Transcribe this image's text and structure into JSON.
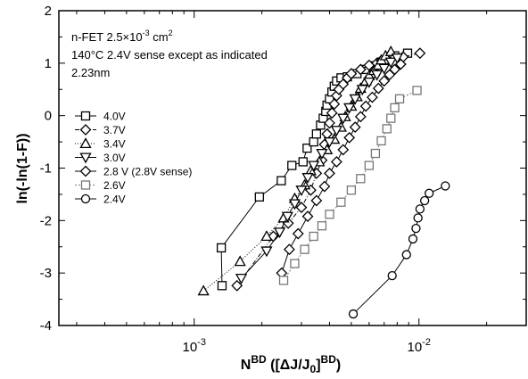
{
  "chart_data": {
    "type": "scatter",
    "title": "",
    "xlabel": {
      "main": "N",
      "sup1": "BD",
      "mid": " ([ΔJ/J",
      "sub": "0",
      "end": "]",
      "sup2": "BD",
      "close": ")"
    },
    "ylabel": "ln(-ln(1-F))",
    "xscale": "log",
    "xlim": [
      0.00025,
      0.03
    ],
    "ylim": [
      -4,
      2
    ],
    "x_major_ticks": [
      {
        "value": 0.001,
        "base": "10",
        "exp": "-3"
      },
      {
        "value": 0.01,
        "base": "10",
        "exp": "-2"
      }
    ],
    "y_ticks": [
      "-4",
      "-3",
      "-2",
      "-1",
      "0",
      "1",
      "2"
    ],
    "annotations": {
      "line1": {
        "pre": "n-FET 2.5×10",
        "sup": "-3",
        "post": " cm",
        "sup2": "2"
      },
      "line2": "140°C  2.4V sense except as indicated",
      "line3": "2.23nm"
    },
    "legend_position": "left",
    "series": [
      {
        "name": "4.0V",
        "marker": "square",
        "dash": "",
        "points": [
          [
            0.00133,
            -3.24
          ],
          [
            0.00132,
            -2.52
          ],
          [
            0.00195,
            -1.55
          ],
          [
            0.00244,
            -1.24
          ],
          [
            0.00272,
            -0.95
          ],
          [
            0.00305,
            -0.88
          ],
          [
            0.00318,
            -0.62
          ],
          [
            0.0034,
            -0.5
          ],
          [
            0.0035,
            -0.35
          ],
          [
            0.00365,
            -0.18
          ],
          [
            0.00375,
            -0.05
          ],
          [
            0.00385,
            0.08
          ],
          [
            0.0039,
            0.2
          ],
          [
            0.004,
            0.32
          ],
          [
            0.0041,
            0.45
          ],
          [
            0.0042,
            0.56
          ],
          [
            0.0043,
            0.66
          ],
          [
            0.0045,
            0.72
          ],
          [
            0.0048,
            0.74
          ],
          [
            0.0053,
            0.8
          ],
          [
            0.0058,
            0.88
          ],
          [
            0.0063,
            0.95
          ],
          [
            0.0068,
            1.02
          ],
          [
            0.0073,
            1.08
          ],
          [
            0.0078,
            1.14
          ],
          [
            0.0089,
            1.19
          ]
        ]
      },
      {
        "name": "3.7V",
        "marker": "diamond",
        "dash": "5,2,1,2",
        "points": [
          [
            0.00155,
            -3.24
          ],
          [
            0.00225,
            -2.3
          ],
          [
            0.00262,
            -2.05
          ],
          [
            0.003,
            -1.75
          ],
          [
            0.0033,
            -1.42
          ],
          [
            0.0035,
            -1.1
          ],
          [
            0.0037,
            -0.85
          ],
          [
            0.0038,
            -0.55
          ],
          [
            0.0039,
            -0.35
          ],
          [
            0.004,
            -0.14
          ],
          [
            0.0041,
            0.05
          ],
          [
            0.0042,
            0.22
          ],
          [
            0.0043,
            0.38
          ],
          [
            0.0044,
            0.5
          ],
          [
            0.0046,
            0.6
          ],
          [
            0.0048,
            0.72
          ],
          [
            0.005,
            0.8
          ],
          [
            0.0055,
            0.88
          ],
          [
            0.006,
            0.96
          ],
          [
            0.0065,
            1.0
          ],
          [
            0.0068,
            1.05
          ],
          [
            0.0072,
            1.07
          ],
          [
            0.0085,
            1.12
          ],
          [
            0.0101,
            1.19
          ]
        ]
      },
      {
        "name": "3.4V",
        "marker": "triangle-up",
        "dash": "1,2",
        "points": [
          [
            0.0011,
            -3.34
          ],
          [
            0.0016,
            -2.78
          ],
          [
            0.0021,
            -2.3
          ],
          [
            0.0025,
            -1.95
          ],
          [
            0.0028,
            -1.58
          ],
          [
            0.0031,
            -1.32
          ],
          [
            0.0033,
            -1.05
          ],
          [
            0.0036,
            -0.88
          ],
          [
            0.0039,
            -0.65
          ],
          [
            0.0042,
            -0.45
          ],
          [
            0.0045,
            -0.22
          ],
          [
            0.0047,
            -0.02
          ],
          [
            0.005,
            0.18
          ],
          [
            0.0053,
            0.36
          ],
          [
            0.0055,
            0.52
          ],
          [
            0.0058,
            0.66
          ],
          [
            0.006,
            0.76
          ],
          [
            0.0063,
            0.86
          ],
          [
            0.0066,
            0.96
          ],
          [
            0.0068,
            1.06
          ],
          [
            0.0071,
            1.14
          ],
          [
            0.0075,
            1.22
          ]
        ]
      },
      {
        "name": "3.0V",
        "marker": "triangle-down",
        "dash": "",
        "points": [
          [
            0.00162,
            -3.1
          ],
          [
            0.0021,
            -2.58
          ],
          [
            0.0024,
            -2.22
          ],
          [
            0.0026,
            -1.92
          ],
          [
            0.0028,
            -1.68
          ],
          [
            0.003,
            -1.42
          ],
          [
            0.0032,
            -1.18
          ],
          [
            0.0034,
            -0.95
          ],
          [
            0.0037,
            -0.72
          ],
          [
            0.004,
            -0.5
          ],
          [
            0.0043,
            -0.28
          ],
          [
            0.0046,
            -0.05
          ],
          [
            0.0049,
            0.15
          ],
          [
            0.0052,
            0.32
          ],
          [
            0.0056,
            0.5
          ],
          [
            0.006,
            0.64
          ],
          [
            0.0065,
            0.78
          ],
          [
            0.007,
            0.9
          ],
          [
            0.0075,
            1.02
          ],
          [
            0.008,
            1.1
          ]
        ]
      },
      {
        "name": "2.8 V (2.8V sense)",
        "marker": "diamond",
        "dash": "",
        "points": [
          [
            0.00245,
            -3.0
          ],
          [
            0.00265,
            -2.55
          ],
          [
            0.0029,
            -2.25
          ],
          [
            0.0032,
            -1.92
          ],
          [
            0.0035,
            -1.62
          ],
          [
            0.0038,
            -1.35
          ],
          [
            0.004,
            -1.1
          ],
          [
            0.0043,
            -0.88
          ],
          [
            0.0046,
            -0.65
          ],
          [
            0.0049,
            -0.42
          ],
          [
            0.0052,
            -0.22
          ],
          [
            0.0055,
            -0.02
          ],
          [
            0.0058,
            0.18
          ],
          [
            0.0062,
            0.35
          ],
          [
            0.0066,
            0.52
          ],
          [
            0.007,
            0.66
          ],
          [
            0.0074,
            0.78
          ],
          [
            0.0078,
            0.88
          ],
          [
            0.0083,
            0.98
          ]
        ]
      },
      {
        "name": "2.6V",
        "marker": "square",
        "dash": "2,2",
        "points": [
          [
            0.0025,
            -3.14
          ],
          [
            0.0028,
            -2.82
          ],
          [
            0.0031,
            -2.55
          ],
          [
            0.0034,
            -2.3
          ],
          [
            0.0037,
            -2.1
          ],
          [
            0.004,
            -1.88
          ],
          [
            0.0045,
            -1.65
          ],
          [
            0.005,
            -1.42
          ],
          [
            0.0055,
            -1.2
          ],
          [
            0.006,
            -0.95
          ],
          [
            0.0064,
            -0.72
          ],
          [
            0.0068,
            -0.48
          ],
          [
            0.0072,
            -0.25
          ],
          [
            0.0075,
            -0.05
          ],
          [
            0.0078,
            0.15
          ],
          [
            0.0082,
            0.32
          ],
          [
            0.0098,
            0.48
          ]
        ]
      },
      {
        "name": "2.4V",
        "marker": "circle",
        "dash": "",
        "points": [
          [
            0.0051,
            -3.78
          ],
          [
            0.0076,
            -3.05
          ],
          [
            0.0088,
            -2.65
          ],
          [
            0.0094,
            -2.35
          ],
          [
            0.0097,
            -2.15
          ],
          [
            0.0099,
            -1.95
          ],
          [
            0.0101,
            -1.78
          ],
          [
            0.0106,
            -1.62
          ],
          [
            0.0111,
            -1.48
          ],
          [
            0.0131,
            -1.34
          ]
        ]
      }
    ]
  }
}
